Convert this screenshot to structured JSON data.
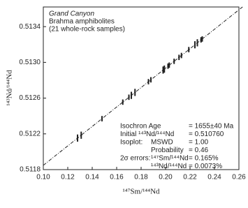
{
  "chart_data": {
    "type": "scatter",
    "x_label": "¹⁴⁷Sm/¹⁴⁴Nd",
    "y_label": "¹⁴³Nd/¹⁴⁴Nd",
    "x": [
      0.128,
      0.131,
      0.148,
      0.165,
      0.17,
      0.172,
      0.175,
      0.186,
      0.188,
      0.198,
      0.199,
      0.202,
      0.203,
      0.207,
      0.211,
      0.213,
      0.219,
      0.224,
      0.226,
      0.229,
      0.23
    ],
    "values": [
      0.512153,
      0.512185,
      0.51237,
      0.512555,
      0.51261,
      0.512631,
      0.512664,
      0.512784,
      0.512805,
      0.512914,
      0.512925,
      0.512958,
      0.512969,
      0.513012,
      0.513056,
      0.513077,
      0.513143,
      0.513197,
      0.513219,
      0.513252,
      0.513262
    ],
    "errors": [
      4e-05,
      4e-05,
      3e-05,
      3e-05,
      3e-05,
      4e-05,
      4e-05,
      3e-05,
      3e-05,
      4e-05,
      4e-05,
      3e-05,
      3e-05,
      3e-05,
      3e-05,
      3e-05,
      3e-05,
      4e-05,
      4e-05,
      3e-05,
      3e-05
    ],
    "color": "#222222",
    "fit_line": {
      "x": [
        0.1,
        0.263
      ],
      "y": [
        0.511848,
        0.513621
      ]
    },
    "xlim": [
      0.1,
      0.26
    ],
    "ylim": [
      0.5118,
      0.51362
    ],
    "xticks": [
      {
        "value": 0.1,
        "label": "0.10"
      },
      0.12,
      0.14,
      0.16,
      0.18,
      {
        "value": 0.2,
        "label": "0.20"
      },
      0.22,
      0.24,
      0.26
    ],
    "yticks": [
      0.5118,
      0.5122,
      0.5126,
      {
        "value": 0.513,
        "label": "0.5130"
      },
      0.5134
    ],
    "sample_info": [
      "Grand Canyon",
      "Brahma amphibolites",
      "(21 whole-rock samples)"
    ],
    "stats": [
      {
        "label": "Isochron Age",
        "value": "= 1655±40 Ma"
      },
      {
        "label": "Initial ¹⁴³Nd/¹⁴⁴Nd",
        "value": "= 0.510760"
      },
      {
        "label": "Isoplot:",
        "sublabel": "MSWD",
        "value": "= 1.00"
      },
      {
        "sublabel": "Probability",
        "value": "= 0.46"
      },
      {
        "label": "2σ errors:",
        "sublabel": "¹⁴⁷Sm/¹⁴⁴Nd",
        "value": "= 0.165%"
      },
      {
        "sublabel": "¹⁴³Nd/¹⁴⁴Nd",
        "value": "= 0.0073%"
      }
    ]
  }
}
